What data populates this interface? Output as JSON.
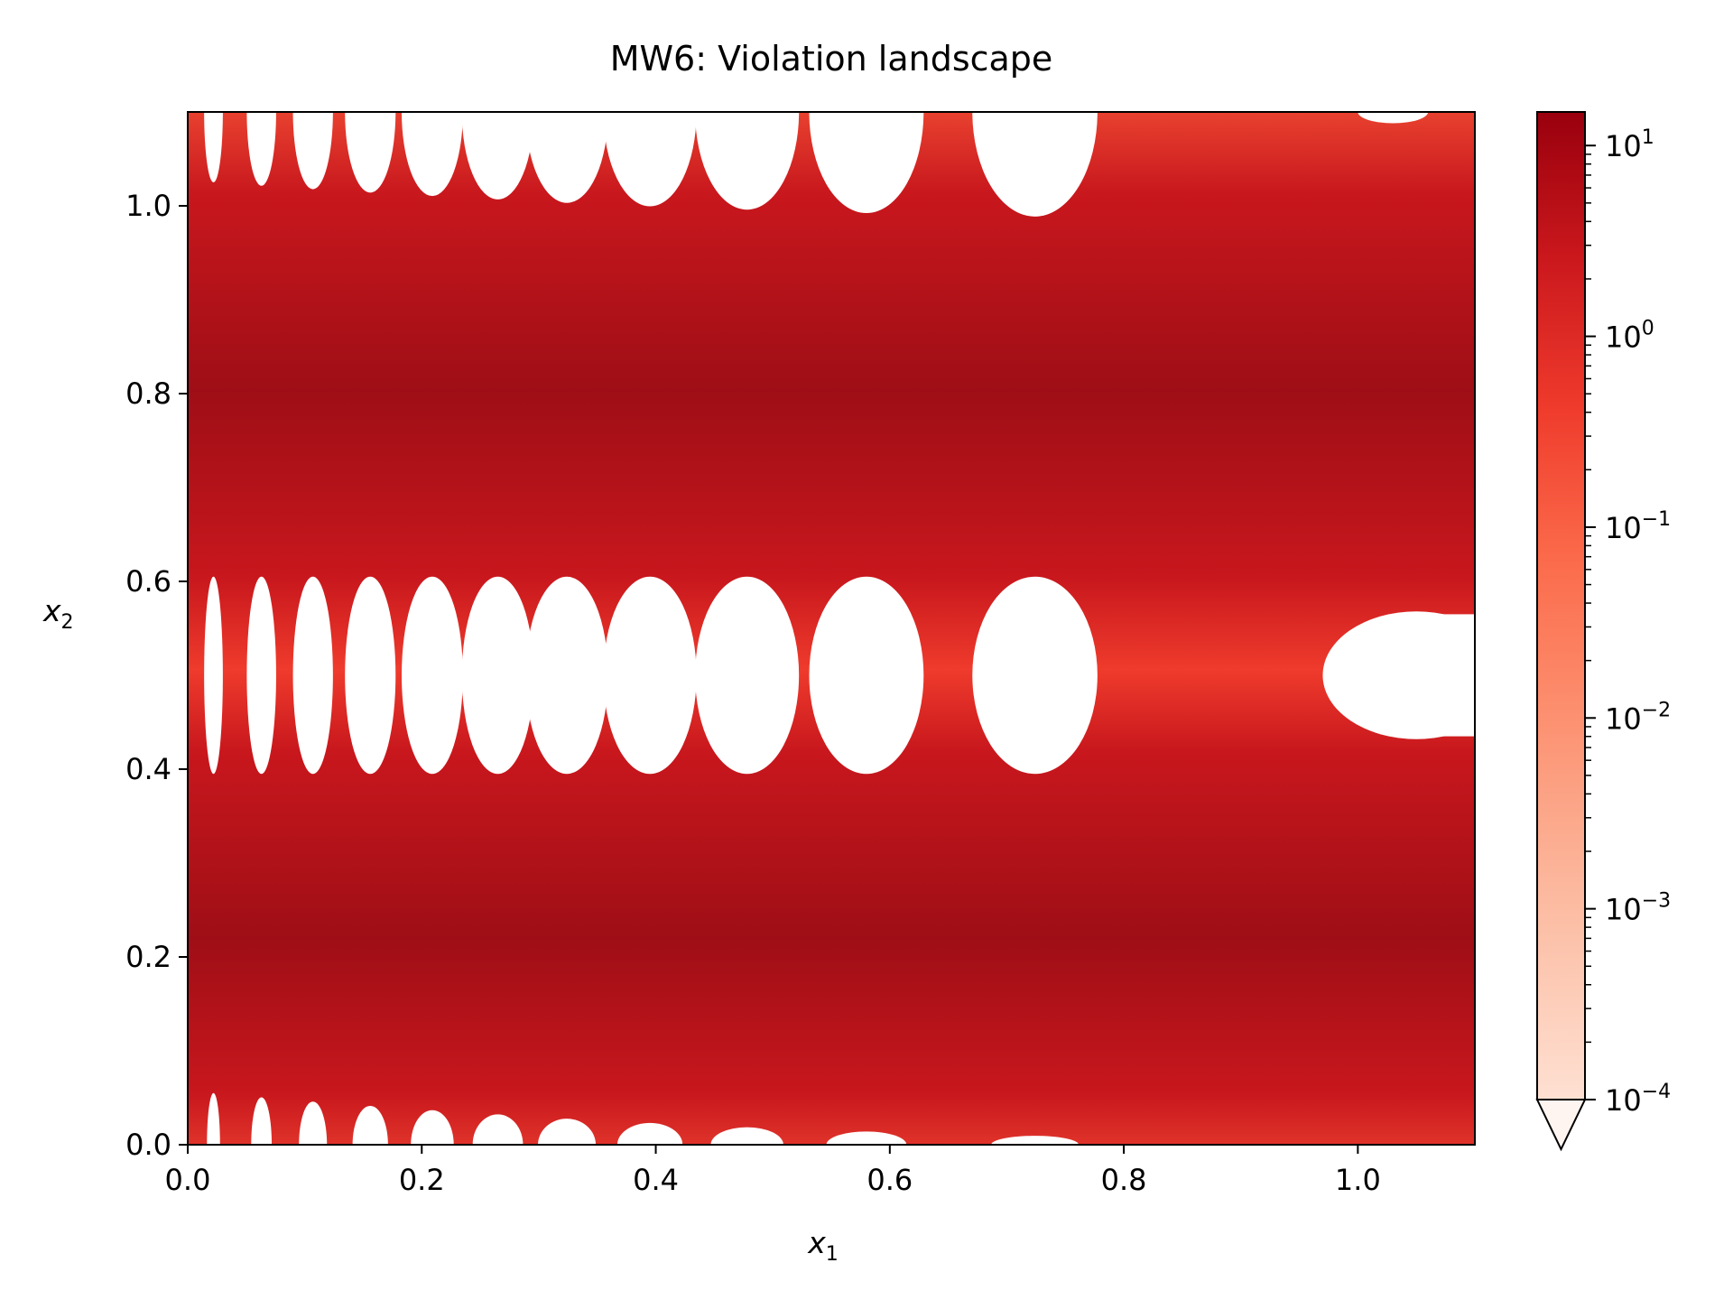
{
  "chart_data": {
    "type": "heatmap",
    "title": "MW6: Violation landscape",
    "xlabel": "x",
    "xlabel_sub": "1",
    "ylabel": "x",
    "ylabel_sub": "2",
    "xlim": [
      0.0,
      1.1
    ],
    "ylim": [
      0.0,
      1.1
    ],
    "x_ticks": [
      "0.0",
      "0.2",
      "0.4",
      "0.6",
      "0.8",
      "1.0"
    ],
    "y_ticks": [
      "0.0",
      "0.2",
      "0.4",
      "0.6",
      "0.8",
      "1.0"
    ],
    "colormap": "Reds",
    "colorbar": {
      "scale": "log",
      "range": [
        0.0001,
        15
      ],
      "extend": "min",
      "ticks": [
        {
          "base": "10",
          "exp": "1"
        },
        {
          "base": "10",
          "exp": "0"
        },
        {
          "base": "10",
          "exp": "−1"
        },
        {
          "base": "10",
          "exp": "−2"
        },
        {
          "base": "10",
          "exp": "−3"
        },
        {
          "base": "10",
          "exp": "−4"
        }
      ],
      "tick_values": [
        10,
        1,
        0.1,
        0.01,
        0.001,
        0.0001
      ]
    },
    "feasible_regions": {
      "description_values": "white zones where violation is zero",
      "band_centers_x2": [
        0.0,
        0.5,
        1.1
      ],
      "column_centers_x1": [
        0.022,
        0.063,
        0.107,
        0.156,
        0.209,
        0.265,
        0.324,
        0.395,
        0.478,
        0.58,
        0.724,
        1.05
      ]
    },
    "colors": {
      "max": "#a50f15",
      "mid": "#ef3b2c",
      "low": "#fc9272",
      "min": "#fff5f0",
      "feasible": "#ffffff"
    }
  }
}
